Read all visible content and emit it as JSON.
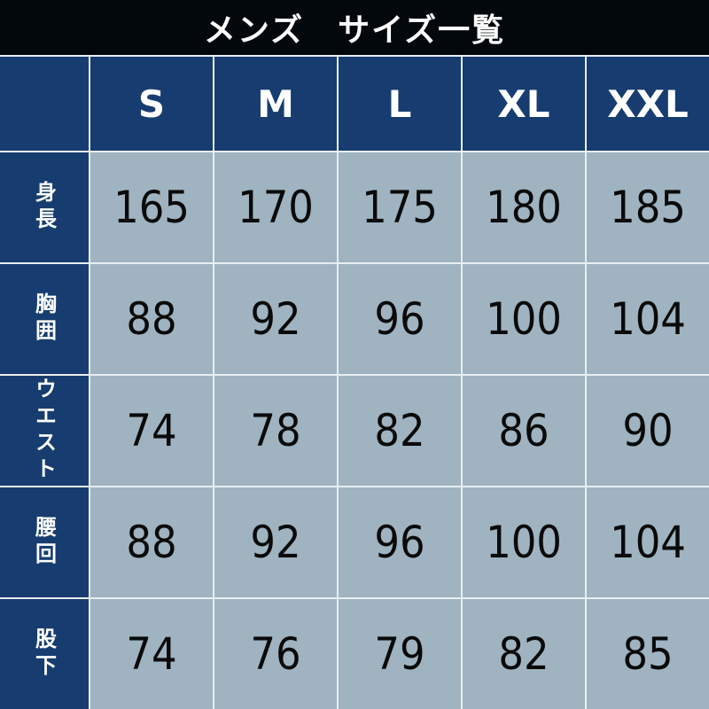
{
  "title": "メンズ　サイズ一覧",
  "colors": {
    "header_bg": "#03080c",
    "navy": "#173d70",
    "cell": "#9fb3c0"
  },
  "sizes": [
    "S",
    "M",
    "L",
    "XL",
    "XXL"
  ],
  "rows": [
    {
      "label": "身長",
      "values": [
        "165",
        "170",
        "175",
        "180",
        "185"
      ]
    },
    {
      "label": "胸囲",
      "values": [
        "88",
        "92",
        "96",
        "100",
        "104"
      ]
    },
    {
      "label": "ウエスト",
      "values": [
        "74",
        "78",
        "82",
        "86",
        "90"
      ]
    },
    {
      "label": "腰回",
      "values": [
        "88",
        "92",
        "96",
        "100",
        "104"
      ]
    },
    {
      "label": "股下",
      "values": [
        "74",
        "76",
        "79",
        "82",
        "85"
      ]
    }
  ]
}
